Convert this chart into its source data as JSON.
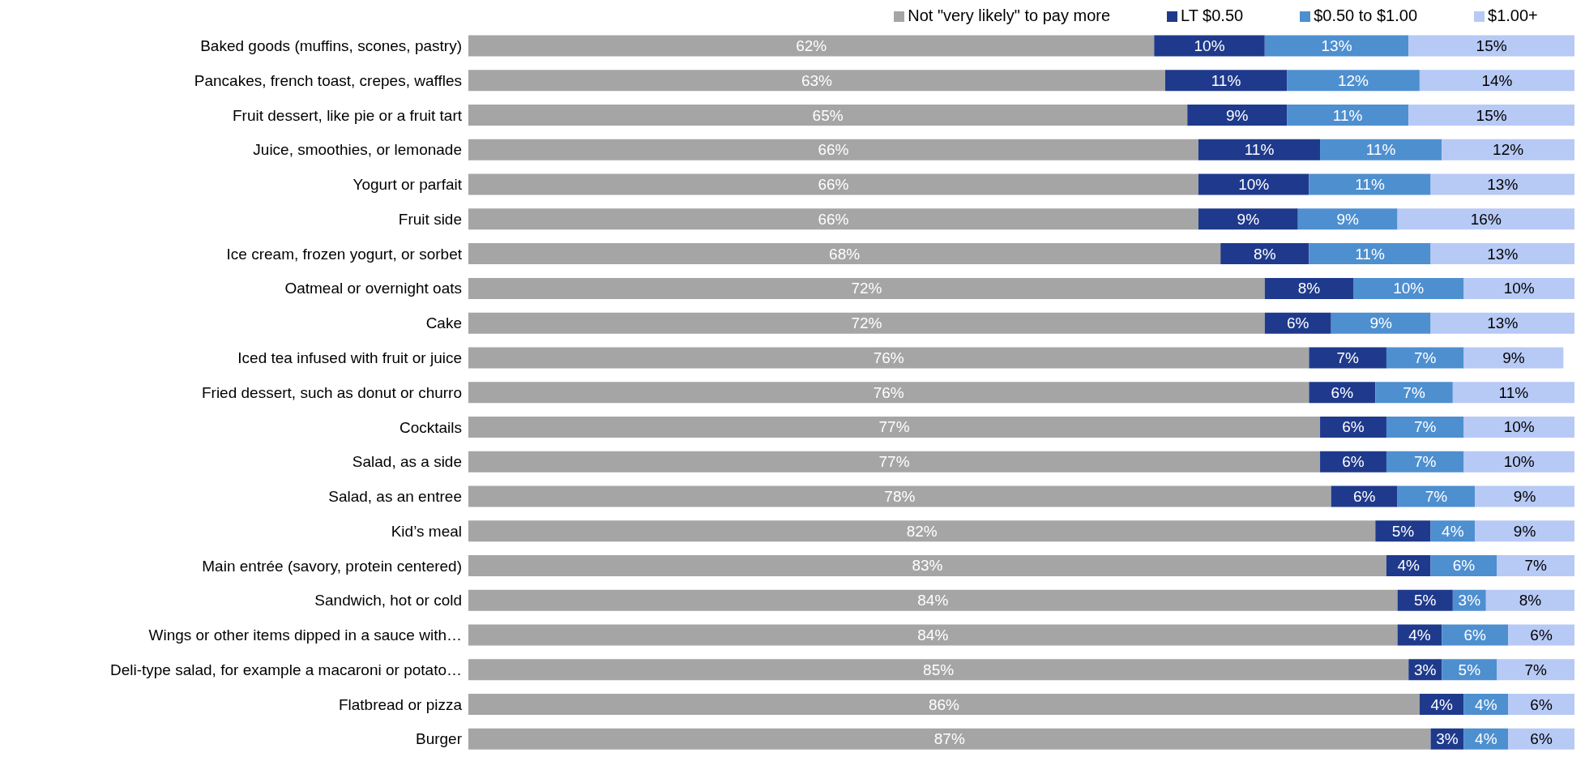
{
  "chart_data": {
    "type": "bar",
    "orientation": "horizontal",
    "stacked": true,
    "legend": "top",
    "tick_labels": "y",
    "xlim": [
      0,
      100
    ],
    "categories": [
      "Baked goods (muffins, scones, pastry)",
      "Pancakes, french toast, crepes, waffles",
      "Fruit dessert, like pie or a fruit tart",
      "Juice, smoothies, or lemonade",
      "Yogurt or parfait",
      "Fruit side",
      "Ice cream, frozen yogurt, or sorbet",
      "Oatmeal or overnight oats",
      "Cake",
      "Iced tea infused with fruit or juice",
      "Fried dessert, such as donut or churro",
      "Cocktails",
      "Salad, as a side",
      "Salad, as an entree",
      "Kid’s meal",
      "Main entrée (savory, protein centered)",
      "Sandwich, hot or cold",
      "Wings or other items dipped in a sauce with…",
      "Deli-type salad, for example a macaroni or potato…",
      "Flatbread or pizza",
      "Burger"
    ],
    "series": [
      {
        "name": "Not \"very likely\" to pay more",
        "color": "#a5a5a5",
        "values": [
          62,
          63,
          65,
          66,
          66,
          66,
          68,
          72,
          72,
          76,
          76,
          77,
          77,
          78,
          82,
          83,
          84,
          84,
          85,
          86,
          87
        ],
        "value_labels": [
          "62%",
          "63%",
          "65%",
          "66%",
          "66%",
          "66%",
          "68%",
          "72%",
          "72%",
          "76%",
          "76%",
          "77%",
          "77%",
          "78%",
          "82%",
          "83%",
          "84%",
          "84%",
          "85%",
          "86%",
          "87%"
        ]
      },
      {
        "name": "LT $0.50",
        "color": "#1f3a8c",
        "values": [
          10,
          11,
          9,
          11,
          10,
          9,
          8,
          8,
          6,
          7,
          6,
          6,
          6,
          6,
          5,
          4,
          5,
          4,
          3,
          4,
          3
        ],
        "value_labels": [
          "10%",
          "11%",
          "9%",
          "11%",
          "10%",
          "9%",
          "8%",
          "8%",
          "6%",
          "7%",
          "6%",
          "6%",
          "6%",
          "6%",
          "5%",
          "4%",
          "5%",
          "4%",
          "3%",
          "4%",
          "3%"
        ]
      },
      {
        "name": "$0.50 to $1.00",
        "color": "#4e8fd0",
        "values": [
          13,
          12,
          11,
          11,
          11,
          9,
          11,
          10,
          9,
          7,
          7,
          7,
          7,
          7,
          4,
          6,
          3,
          6,
          5,
          4,
          4
        ],
        "value_labels": [
          "13%",
          "12%",
          "11%",
          "11%",
          "11%",
          "9%",
          "11%",
          "10%",
          "9%",
          "7%",
          "7%",
          "7%",
          "7%",
          "7%",
          "4%",
          "6%",
          "3%",
          "6%",
          "5%",
          "4%",
          "4%"
        ]
      },
      {
        "name": "$1.00+",
        "color": "#b7c9f5",
        "values": [
          15,
          14,
          15,
          12,
          13,
          16,
          13,
          10,
          13,
          9,
          11,
          10,
          10,
          9,
          9,
          7,
          8,
          6,
          7,
          6,
          6
        ],
        "value_labels": [
          "15%",
          "14%",
          "15%",
          "12%",
          "13%",
          "16%",
          "13%",
          "10%",
          "13%",
          "9%",
          "11%",
          "10%",
          "10%",
          "9%",
          "9%",
          "7%",
          "8%",
          "6%",
          "7%",
          "6%",
          "6%"
        ]
      }
    ]
  }
}
